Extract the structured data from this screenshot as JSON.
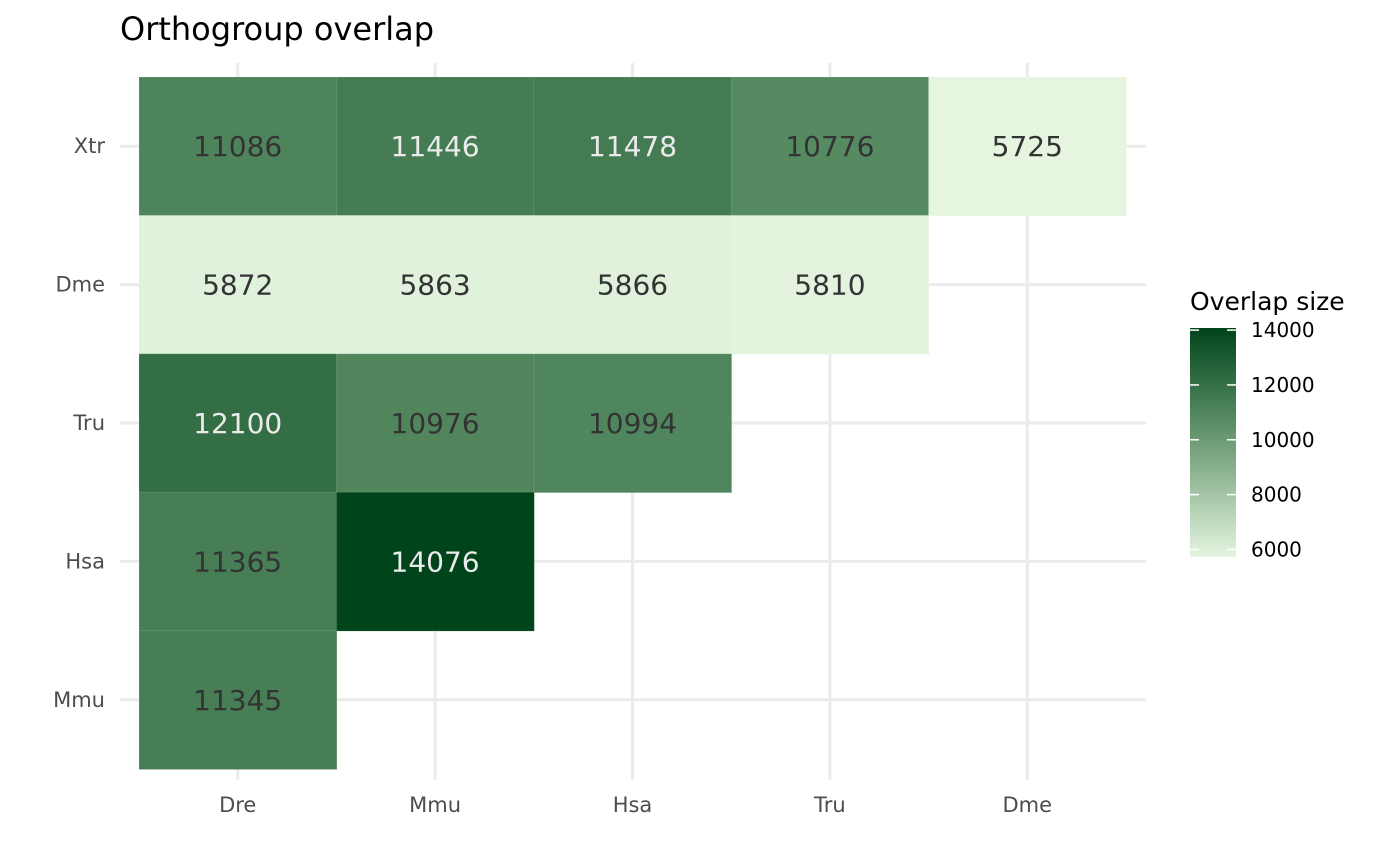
{
  "chart_data": {
    "type": "heatmap",
    "title": "Orthogroup overlap",
    "x_categories": [
      "Dre",
      "Mmu",
      "Hsa",
      "Tru",
      "Dme"
    ],
    "y_categories": [
      "Xtr",
      "Dme",
      "Tru",
      "Hsa",
      "Mmu"
    ],
    "cells": [
      {
        "x": "Dre",
        "y": "Xtr",
        "value": 11086
      },
      {
        "x": "Mmu",
        "y": "Xtr",
        "value": 11446
      },
      {
        "x": "Hsa",
        "y": "Xtr",
        "value": 11478
      },
      {
        "x": "Tru",
        "y": "Xtr",
        "value": 10776
      },
      {
        "x": "Dme",
        "y": "Xtr",
        "value": 5725
      },
      {
        "x": "Dre",
        "y": "Dme",
        "value": 5872
      },
      {
        "x": "Mmu",
        "y": "Dme",
        "value": 5863
      },
      {
        "x": "Hsa",
        "y": "Dme",
        "value": 5866
      },
      {
        "x": "Tru",
        "y": "Dme",
        "value": 5810
      },
      {
        "x": "Dre",
        "y": "Tru",
        "value": 12100
      },
      {
        "x": "Mmu",
        "y": "Tru",
        "value": 10976
      },
      {
        "x": "Hsa",
        "y": "Tru",
        "value": 10994
      },
      {
        "x": "Dre",
        "y": "Hsa",
        "value": 11365
      },
      {
        "x": "Mmu",
        "y": "Hsa",
        "value": 14076
      },
      {
        "x": "Dre",
        "y": "Mmu",
        "value": 11345
      }
    ],
    "legend": {
      "title": "Overlap size",
      "ticks": [
        6000,
        8000,
        10000,
        12000,
        14000
      ],
      "range": [
        5725,
        14076
      ],
      "low_color": "#e5f5e0",
      "high_color": "#00441b",
      "placement": "right"
    },
    "grid": true
  }
}
